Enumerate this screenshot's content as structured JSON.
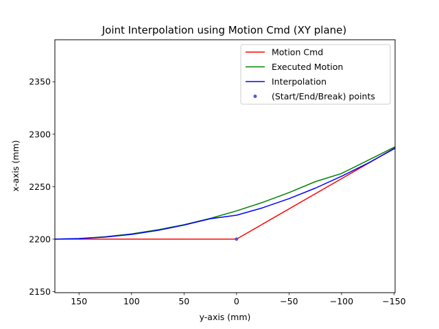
{
  "chart_data": {
    "type": "line",
    "title": "Joint Interpolation using Motion Cmd (XY plane)",
    "xlabel": "y-axis (mm)",
    "ylabel": "x-axis (mm)",
    "xlim": [
      173,
      -151
    ],
    "ylim": [
      2149,
      2390
    ],
    "x_ticks": [
      150,
      100,
      50,
      0,
      -50,
      -100,
      -150
    ],
    "x_tick_labels": [
      "150",
      "100",
      "50",
      "0",
      "−50",
      "−100",
      "−150"
    ],
    "y_ticks": [
      2150,
      2200,
      2250,
      2300,
      2350
    ],
    "y_tick_labels": [
      "2150",
      "2200",
      "2250",
      "2300",
      "2350"
    ],
    "grid": false,
    "legend_position": "upper right",
    "series": [
      {
        "name": "Motion Cmd",
        "kind": "line",
        "color": "#ff0000",
        "x": [
          173,
          0,
          -151
        ],
        "y": [
          2200,
          2200,
          2287
        ]
      },
      {
        "name": "Executed Motion",
        "kind": "line",
        "color": "#008000",
        "x": [
          173,
          150,
          125,
          100,
          75,
          50,
          25,
          0,
          -25,
          -50,
          -75,
          -100,
          -125,
          -151
        ],
        "y": [
          2200.0,
          2200.6,
          2202.3,
          2205.0,
          2208.9,
          2213.8,
          2219.8,
          2226.9,
          2235.1,
          2244.4,
          2254.8,
          2262.6,
          2275.0,
          2288.0
        ]
      },
      {
        "name": "Interpolation",
        "kind": "line",
        "color": "#0000ff",
        "x": [
          173,
          150,
          125,
          100,
          75,
          50,
          25,
          0,
          -25,
          -50,
          -75,
          -100,
          -125,
          -151
        ],
        "y": [
          2200.0,
          2200.5,
          2202.0,
          2204.5,
          2208.4,
          2213.4,
          2219.5,
          2222.8,
          2229.9,
          2238.6,
          2248.6,
          2259.9,
          2272.3,
          2286.6
        ]
      },
      {
        "name": "(Start/End/Break) points",
        "kind": "scatter",
        "color": "#4c5ad6",
        "x": [
          0
        ],
        "y": [
          2200
        ]
      }
    ]
  }
}
